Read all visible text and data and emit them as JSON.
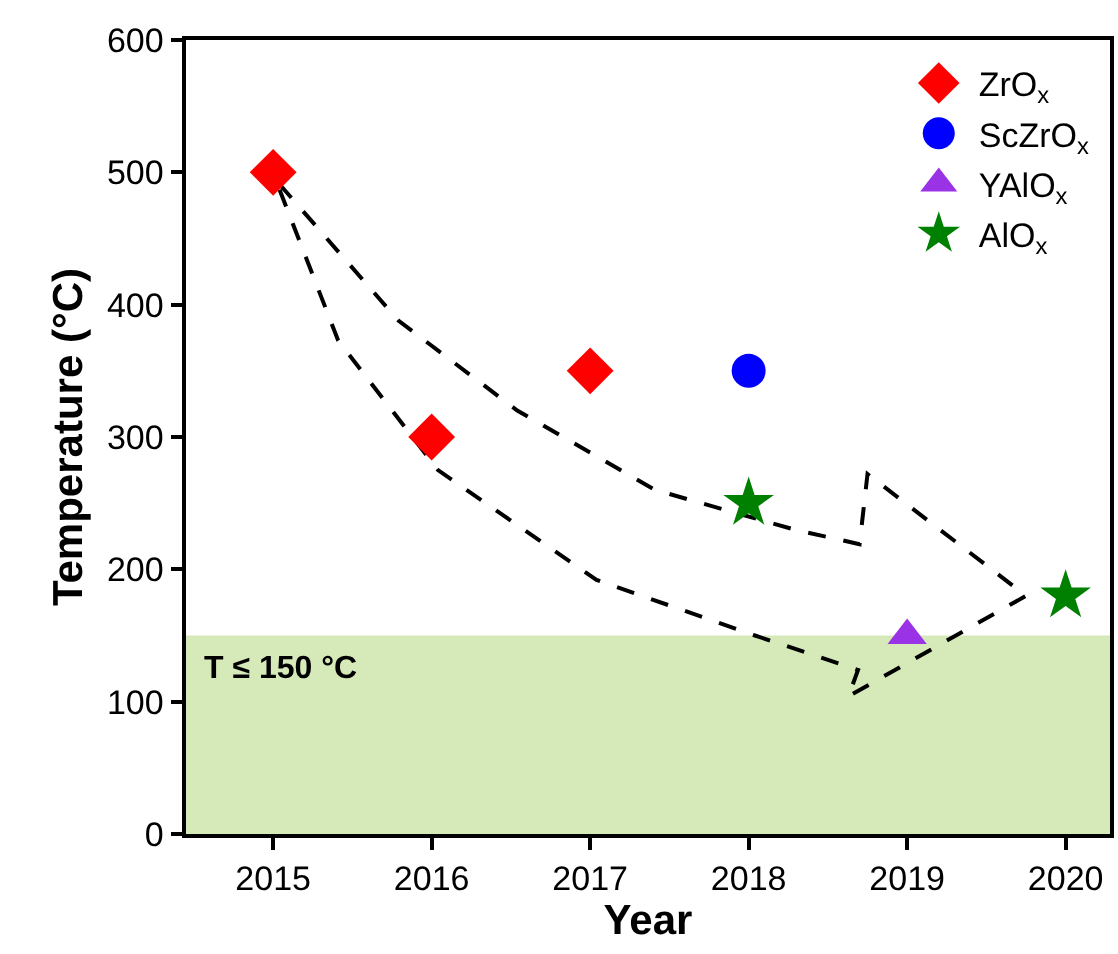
{
  "chart_data": {
    "type": "scatter",
    "xlabel": "Year",
    "ylabel": "Temperature (°C)",
    "xlim": [
      2014.45,
      2020.28
    ],
    "xticks": [
      2015,
      2016,
      2017,
      2018,
      2019,
      2020
    ],
    "ylim": [
      0,
      600
    ],
    "yticks": [
      0,
      100,
      200,
      300,
      400,
      500,
      600
    ],
    "grid": false,
    "legend": "top right",
    "series": [
      {
        "name": "ZrO$_{x}$",
        "color": "#ff0000",
        "marker": "diamond",
        "x": [
          2015,
          2016,
          2017
        ],
        "values": [
          500,
          300,
          350
        ]
      },
      {
        "name": "ScZrO$_{x}$",
        "color": "#0000ff",
        "marker": "circle",
        "x": [
          2018
        ],
        "values": [
          350
        ]
      },
      {
        "name": "YAlO$_{x}$",
        "color": "#9a32e6",
        "marker": "triangle",
        "x": [
          2019
        ],
        "values": [
          150
        ]
      },
      {
        "name": "AlO$_{x}$",
        "color": "#008000",
        "marker": "star",
        "x": [
          2018,
          2020
        ],
        "values": [
          250,
          180
        ]
      }
    ],
    "bands": [
      {
        "axis": "y",
        "from": 0,
        "to": 150,
        "label": "T ≤ 150 °C",
        "color": "#d6e9b8"
      }
    ]
  }
}
